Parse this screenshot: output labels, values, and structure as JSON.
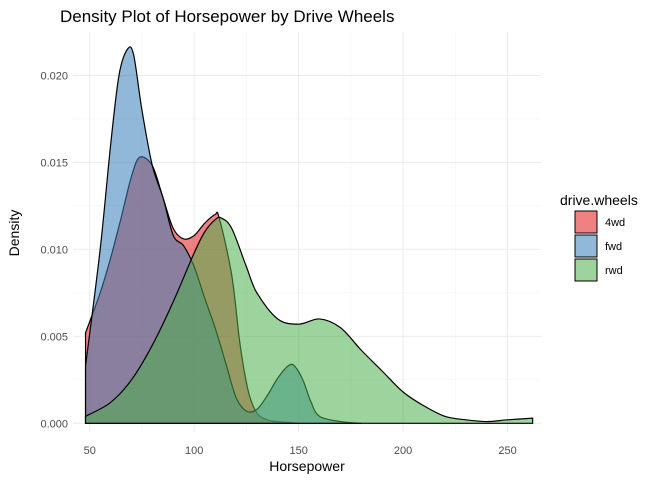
{
  "chart_data": {
    "type": "area",
    "title": "Density Plot of Horsepower by Drive Wheels",
    "xlabel": "Horsepower",
    "ylabel": "Density",
    "xlim": [
      42,
      266
    ],
    "ylim": [
      -0.0005,
      0.0225
    ],
    "x_ticks": [
      50,
      100,
      150,
      200,
      250
    ],
    "x_tick_labels": [
      "50",
      "100",
      "150",
      "200",
      "250"
    ],
    "y_ticks": [
      0.0,
      0.005,
      0.01,
      0.015,
      0.02
    ],
    "y_tick_labels": [
      "0.000",
      "0.005",
      "0.010",
      "0.015",
      "0.020"
    ],
    "grid": true,
    "legend": {
      "title": "drive.wheels",
      "placement": "right"
    },
    "series": [
      {
        "name": "4wd",
        "color": "#e41a1c",
        "x": [
          48,
          55,
          60,
          65,
          70,
          74,
          80,
          85,
          90,
          95,
          100,
          105,
          110,
          112,
          118,
          122,
          126,
          130,
          135,
          140,
          150
        ],
        "y": [
          0.0052,
          0.0075,
          0.0095,
          0.0118,
          0.0142,
          0.0153,
          0.0148,
          0.013,
          0.0112,
          0.0106,
          0.0108,
          0.0115,
          0.012,
          0.0118,
          0.0085,
          0.0045,
          0.0018,
          0.0006,
          0.0002,
          0.0001,
          0.0
        ]
      },
      {
        "name": "fwd",
        "color": "#377eb8",
        "x": [
          48,
          55,
          60,
          64,
          68,
          71,
          75,
          80,
          85,
          90,
          95,
          100,
          105,
          110,
          115,
          120,
          125,
          130,
          135,
          140,
          145,
          148,
          152,
          156,
          160,
          170,
          180
        ],
        "y": [
          0.0033,
          0.01,
          0.016,
          0.02,
          0.0215,
          0.0212,
          0.018,
          0.0148,
          0.013,
          0.0108,
          0.0102,
          0.009,
          0.0072,
          0.0055,
          0.0035,
          0.0015,
          0.0007,
          0.0008,
          0.0016,
          0.0026,
          0.0033,
          0.0033,
          0.0025,
          0.0012,
          0.0004,
          0.0001,
          0.0
        ]
      },
      {
        "name": "rwd",
        "color": "#4daf4a",
        "x": [
          48,
          60,
          70,
          80,
          90,
          100,
          105,
          110,
          113,
          118,
          125,
          130,
          140,
          150,
          160,
          170,
          180,
          190,
          200,
          210,
          220,
          230,
          240,
          250,
          262
        ],
        "y": [
          0.0004,
          0.0012,
          0.0025,
          0.0045,
          0.007,
          0.0098,
          0.011,
          0.0117,
          0.0118,
          0.0112,
          0.009,
          0.0075,
          0.006,
          0.0057,
          0.006,
          0.0055,
          0.0042,
          0.003,
          0.0018,
          0.001,
          0.0004,
          0.0002,
          0.0001,
          0.0002,
          0.0003
        ]
      }
    ]
  }
}
